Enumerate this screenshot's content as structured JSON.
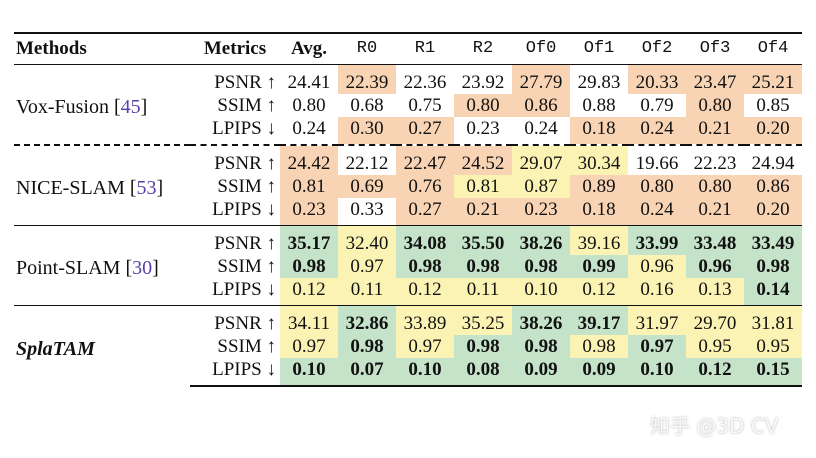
{
  "header": {
    "methods": "Methods",
    "metrics": "Metrics",
    "avg": "Avg.",
    "scenes": [
      "R0",
      "R1",
      "R2",
      "Of0",
      "Of1",
      "Of2",
      "Of3",
      "Of4"
    ]
  },
  "colors": {
    "orange": "#f9d4b4",
    "yellow": "#fbf3b4",
    "green": "#c5e3c9"
  },
  "groups": [
    {
      "method": "Vox-Fusion [",
      "ref": "45",
      "method_end": "]",
      "rows": [
        {
          "metric": "PSNR ↑",
          "cells": [
            {
              "v": "24.41"
            },
            {
              "v": "22.39",
              "c": "orange"
            },
            {
              "v": "22.36"
            },
            {
              "v": "23.92"
            },
            {
              "v": "27.79",
              "c": "orange"
            },
            {
              "v": "29.83"
            },
            {
              "v": "20.33",
              "c": "orange"
            },
            {
              "v": "23.47",
              "c": "orange"
            },
            {
              "v": "25.21",
              "c": "orange"
            }
          ]
        },
        {
          "metric": "SSIM ↑",
          "cells": [
            {
              "v": "0.80"
            },
            {
              "v": "0.68"
            },
            {
              "v": "0.75"
            },
            {
              "v": "0.80",
              "c": "orange"
            },
            {
              "v": "0.86",
              "c": "orange"
            },
            {
              "v": "0.88"
            },
            {
              "v": "0.79"
            },
            {
              "v": "0.80",
              "c": "orange"
            },
            {
              "v": "0.85"
            }
          ]
        },
        {
          "metric": "LPIPS ↓",
          "cells": [
            {
              "v": "0.24"
            },
            {
              "v": "0.30",
              "c": "orange"
            },
            {
              "v": "0.27",
              "c": "orange"
            },
            {
              "v": "0.23"
            },
            {
              "v": "0.24"
            },
            {
              "v": "0.18",
              "c": "orange"
            },
            {
              "v": "0.24",
              "c": "orange"
            },
            {
              "v": "0.21",
              "c": "orange"
            },
            {
              "v": "0.20",
              "c": "orange"
            }
          ]
        }
      ]
    },
    {
      "method": "NICE-SLAM [",
      "ref": "53",
      "method_end": "]",
      "rows": [
        {
          "metric": "PSNR ↑",
          "cells": [
            {
              "v": "24.42",
              "c": "orange"
            },
            {
              "v": "22.12"
            },
            {
              "v": "22.47",
              "c": "orange"
            },
            {
              "v": "24.52",
              "c": "orange"
            },
            {
              "v": "29.07",
              "c": "yellow"
            },
            {
              "v": "30.34",
              "c": "yellow"
            },
            {
              "v": "19.66"
            },
            {
              "v": "22.23"
            },
            {
              "v": "24.94"
            }
          ]
        },
        {
          "metric": "SSIM ↑",
          "cells": [
            {
              "v": "0.81",
              "c": "orange"
            },
            {
              "v": "0.69",
              "c": "orange"
            },
            {
              "v": "0.76",
              "c": "orange"
            },
            {
              "v": "0.81",
              "c": "yellow"
            },
            {
              "v": "0.87",
              "c": "yellow"
            },
            {
              "v": "0.89",
              "c": "orange"
            },
            {
              "v": "0.80",
              "c": "orange"
            },
            {
              "v": "0.80",
              "c": "orange"
            },
            {
              "v": "0.86",
              "c": "orange"
            }
          ]
        },
        {
          "metric": "LPIPS ↓",
          "cells": [
            {
              "v": "0.23",
              "c": "orange"
            },
            {
              "v": "0.33"
            },
            {
              "v": "0.27",
              "c": "orange"
            },
            {
              "v": "0.21",
              "c": "orange"
            },
            {
              "v": "0.23",
              "c": "orange"
            },
            {
              "v": "0.18",
              "c": "orange"
            },
            {
              "v": "0.24",
              "c": "orange"
            },
            {
              "v": "0.21",
              "c": "orange"
            },
            {
              "v": "0.20",
              "c": "orange"
            }
          ]
        }
      ]
    },
    {
      "method": "Point-SLAM [",
      "ref": "30",
      "method_end": "]",
      "rows": [
        {
          "metric": "PSNR ↑",
          "cells": [
            {
              "v": "35.17",
              "c": "green",
              "b": 1
            },
            {
              "v": "32.40",
              "c": "yellow"
            },
            {
              "v": "34.08",
              "c": "green",
              "b": 1
            },
            {
              "v": "35.50",
              "c": "green",
              "b": 1
            },
            {
              "v": "38.26",
              "c": "green",
              "b": 1
            },
            {
              "v": "39.16",
              "c": "yellow"
            },
            {
              "v": "33.99",
              "c": "green",
              "b": 1
            },
            {
              "v": "33.48",
              "c": "green",
              "b": 1
            },
            {
              "v": "33.49",
              "c": "green",
              "b": 1
            }
          ]
        },
        {
          "metric": "SSIM ↑",
          "cells": [
            {
              "v": "0.98",
              "c": "green",
              "b": 1
            },
            {
              "v": "0.97",
              "c": "yellow"
            },
            {
              "v": "0.98",
              "c": "green",
              "b": 1
            },
            {
              "v": "0.98",
              "c": "green",
              "b": 1
            },
            {
              "v": "0.98",
              "c": "green",
              "b": 1
            },
            {
              "v": "0.99",
              "c": "green",
              "b": 1
            },
            {
              "v": "0.96",
              "c": "yellow"
            },
            {
              "v": "0.96",
              "c": "green",
              "b": 1
            },
            {
              "v": "0.98",
              "c": "green",
              "b": 1
            }
          ]
        },
        {
          "metric": "LPIPS ↓",
          "cells": [
            {
              "v": "0.12",
              "c": "yellow"
            },
            {
              "v": "0.11",
              "c": "yellow"
            },
            {
              "v": "0.12",
              "c": "yellow"
            },
            {
              "v": "0.11",
              "c": "yellow"
            },
            {
              "v": "0.10",
              "c": "yellow"
            },
            {
              "v": "0.12",
              "c": "yellow"
            },
            {
              "v": "0.16",
              "c": "yellow"
            },
            {
              "v": "0.13",
              "c": "yellow"
            },
            {
              "v": "0.14",
              "c": "green",
              "b": 1
            }
          ]
        }
      ]
    },
    {
      "method": "SplaTAM",
      "ref": "",
      "method_end": "",
      "ours": true,
      "rows": [
        {
          "metric": "PSNR ↑",
          "cells": [
            {
              "v": "34.11",
              "c": "yellow"
            },
            {
              "v": "32.86",
              "c": "green",
              "b": 1
            },
            {
              "v": "33.89",
              "c": "yellow"
            },
            {
              "v": "35.25",
              "c": "yellow"
            },
            {
              "v": "38.26",
              "c": "green",
              "b": 1
            },
            {
              "v": "39.17",
              "c": "green",
              "b": 1
            },
            {
              "v": "31.97",
              "c": "yellow"
            },
            {
              "v": "29.70",
              "c": "yellow"
            },
            {
              "v": "31.81",
              "c": "yellow"
            }
          ]
        },
        {
          "metric": "SSIM ↑",
          "cells": [
            {
              "v": "0.97",
              "c": "yellow"
            },
            {
              "v": "0.98",
              "c": "green",
              "b": 1
            },
            {
              "v": "0.97",
              "c": "yellow"
            },
            {
              "v": "0.98",
              "c": "green",
              "b": 1
            },
            {
              "v": "0.98",
              "c": "green",
              "b": 1
            },
            {
              "v": "0.98",
              "c": "yellow"
            },
            {
              "v": "0.97",
              "c": "green",
              "b": 1
            },
            {
              "v": "0.95",
              "c": "yellow"
            },
            {
              "v": "0.95",
              "c": "yellow"
            }
          ]
        },
        {
          "metric": "LPIPS ↓",
          "cells": [
            {
              "v": "0.10",
              "c": "green",
              "b": 1
            },
            {
              "v": "0.07",
              "c": "green",
              "b": 1
            },
            {
              "v": "0.10",
              "c": "green",
              "b": 1
            },
            {
              "v": "0.08",
              "c": "green",
              "b": 1
            },
            {
              "v": "0.09",
              "c": "green",
              "b": 1
            },
            {
              "v": "0.09",
              "c": "green",
              "b": 1
            },
            {
              "v": "0.10",
              "c": "green",
              "b": 1
            },
            {
              "v": "0.12",
              "c": "green",
              "b": 1
            },
            {
              "v": "0.15",
              "c": "green",
              "b": 1
            }
          ]
        }
      ]
    }
  ],
  "watermark": "知乎 @3D CV"
}
